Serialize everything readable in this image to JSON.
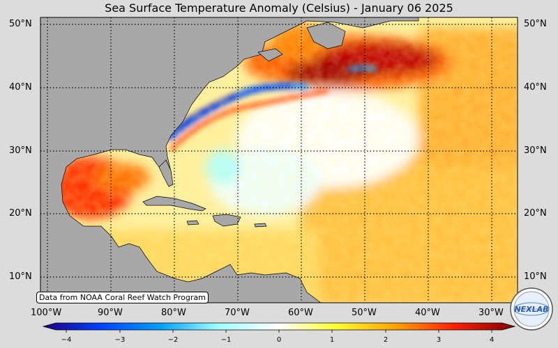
{
  "title": "Sea Surface Temperature Anomaly (Celsius) - January 06 2025",
  "credit": "Data from NOAA Coral Reef Watch Program",
  "logo_text": "NEXLAB",
  "map": {
    "lon_range": [
      -102,
      -28
    ],
    "lat_range": [
      6,
      51
    ],
    "lat_ticks": [
      "50°N",
      "40°N",
      "30°N",
      "20°N",
      "10°N"
    ],
    "lon_ticks": [
      "100°W",
      "90°W",
      "80°W",
      "70°W",
      "60°W",
      "50°W",
      "40°W",
      "30°W"
    ],
    "gridlines": "dotted"
  },
  "colorbar": {
    "min": -4,
    "max": 4,
    "ticks": [
      "−4",
      "−3",
      "−2",
      "−1",
      "0",
      "1",
      "2",
      "3",
      "4"
    ],
    "colors": [
      "#200080",
      "#0040ff",
      "#00c0ff",
      "#c0ffff",
      "#ffffff",
      "#ffff40",
      "#ffa000",
      "#ff2000",
      "#900000"
    ]
  },
  "colors": {
    "land": "#a8a8a8",
    "background": "#dcdcdc"
  }
}
